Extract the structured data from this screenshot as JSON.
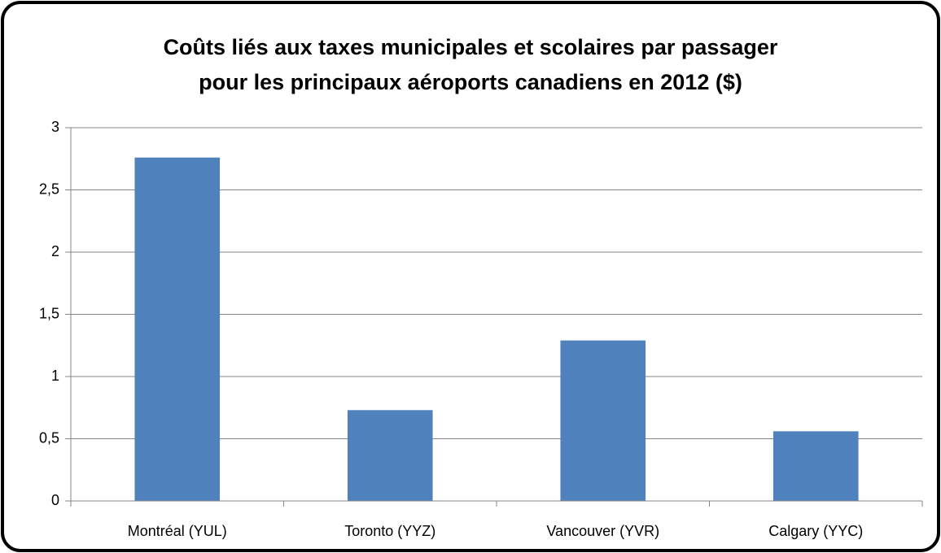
{
  "chart_data": {
    "type": "bar",
    "title": [
      "Coûts liés aux taxes municipales et scolaires par passager",
      "pour les principaux aéroports canadiens en 2012 ($)"
    ],
    "categories": [
      "Montréal (YUL)",
      "Toronto (YYZ)",
      "Vancouver (YVR)",
      "Calgary (YYC)"
    ],
    "values": [
      2.76,
      0.73,
      1.29,
      0.56
    ],
    "color": "#4f81bd",
    "ylim": [
      0,
      3
    ],
    "yticks": [
      0,
      {
        "value": 0.5,
        "label": "0,5"
      },
      1,
      {
        "value": 1.5,
        "label": "1,5"
      },
      2,
      {
        "value": 2.5,
        "label": "2,5"
      },
      3
    ],
    "grid": true
  }
}
